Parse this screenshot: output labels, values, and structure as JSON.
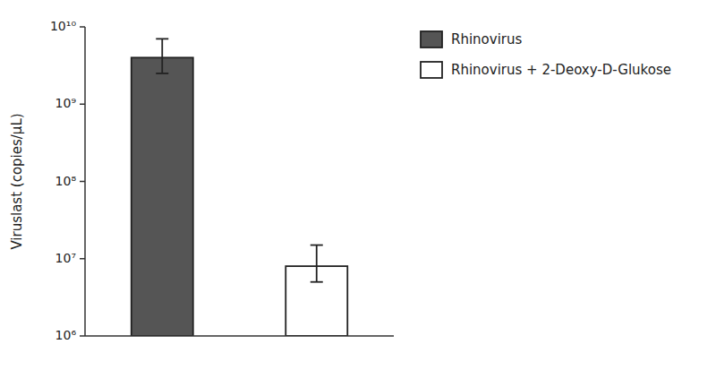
{
  "chart_data": {
    "type": "bar",
    "y_label": "Viruslast (copies/μL)",
    "categories": [
      null,
      null
    ],
    "series": [
      {
        "name": "Rhinovirus",
        "color": "#555555",
        "values": [
          4000000000.0,
          null
        ],
        "error_upper": [
          3000000000.0,
          null
        ],
        "error_lower": [
          1500000000.0,
          null
        ]
      },
      {
        "name": "Rhinovirus + 2-Deoxy-D-Glukose",
        "color": "#ffffff",
        "values": [
          null,
          8000000.0
        ],
        "error_upper": [
          null,
          7000000.0
        ],
        "error_lower": [
          null,
          3000000.0
        ]
      }
    ],
    "ylim": [
      1000000,
      10000000000
    ],
    "yticks": [
      {
        "value": 1000000,
        "label": "10⁶"
      },
      {
        "value": 10000000,
        "label": "10⁷"
      },
      {
        "value": 100000000,
        "label": "10⁸"
      },
      {
        "value": 1000000000,
        "label": "10⁹"
      },
      {
        "value": 10000000000,
        "label": "10¹⁰"
      }
    ],
    "log": "y",
    "grid": false,
    "legend": "right",
    "tick_labels": "y"
  }
}
